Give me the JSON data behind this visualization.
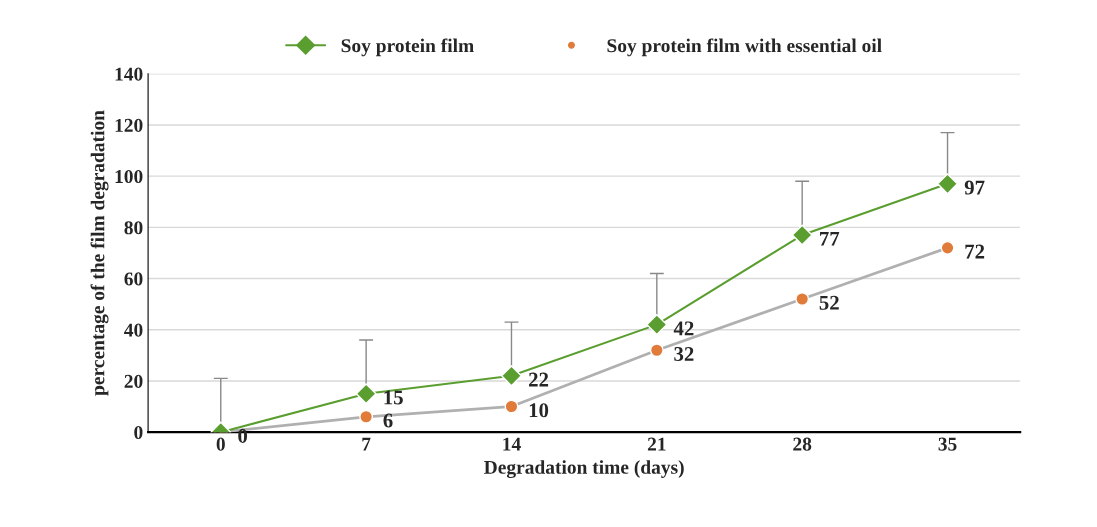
{
  "chart_data": {
    "type": "line",
    "xlabel": "Degradation time (days)",
    "ylabel": "percentage of the film degradation",
    "categories": [
      "0",
      "7",
      "14",
      "21",
      "28",
      "35"
    ],
    "series": [
      {
        "name": "Soy protein film",
        "color": "#5a9e2f",
        "marker": "diamond",
        "values": [
          0,
          15,
          22,
          42,
          77,
          97
        ],
        "value_labels": [
          "0",
          "15",
          "22",
          "42",
          "77",
          "97"
        ],
        "errors": [
          [
            0,
            21
          ],
          [
            15,
            36
          ],
          [
            22,
            43
          ],
          [
            42,
            62
          ],
          [
            77,
            98
          ],
          [
            97,
            117
          ]
        ]
      },
      {
        "name": "Soy protein film with essential oil",
        "color": "#e07b39",
        "marker": "circle",
        "values": [
          0,
          6,
          10,
          32,
          52,
          72
        ],
        "value_labels": [
          null,
          "6",
          "10",
          "32",
          "52",
          "72"
        ]
      }
    ],
    "ylim": [
      0,
      140
    ],
    "yticks": [
      0,
      20,
      40,
      60,
      80,
      100,
      120,
      140
    ],
    "grid": "y",
    "legend": "top"
  }
}
